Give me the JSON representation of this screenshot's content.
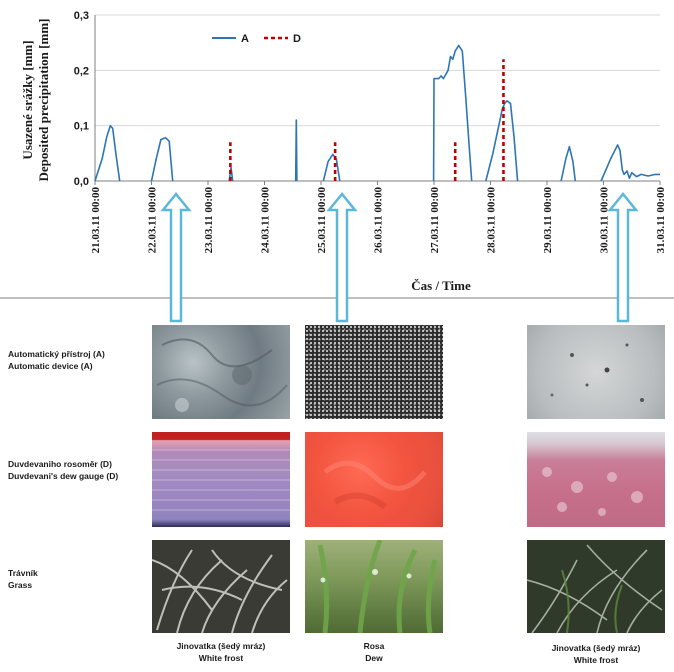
{
  "chart_data": {
    "type": "line",
    "ylabel_cz": "Usazené srážky [mm]",
    "ylabel_en": "Deposited precipitation [mm]",
    "xlabel": "Čas / Time",
    "ylim": [
      0,
      0.3
    ],
    "yticks": [
      "0,0",
      "0,1",
      "0,2",
      "0,3"
    ],
    "yticks_values": [
      0,
      0.1,
      0.2,
      0.3
    ],
    "xlim": [
      "21.03.11 00:00",
      "31.03.11 00:00"
    ],
    "xticks": [
      "21.03.11 00:00",
      "22.03.11 00:00",
      "23.03.11 00:00",
      "24.03.11 00:00",
      "25.03.11 00:00",
      "26.03.11 00:00",
      "27.03.11 00:00",
      "28.03.11 00:00",
      "29.03.11 00:00",
      "30.03.11 00:00",
      "31.03.11 00:00"
    ],
    "grid": "horizontal",
    "legend_position": "top-left",
    "series": [
      {
        "name": "A",
        "color": "#2e75b6",
        "style": "solid",
        "points": [
          [
            "21.03.11 00:00",
            0
          ],
          [
            "21.03.11 03:00",
            0.04
          ],
          [
            "21.03.11 05:00",
            0.08
          ],
          [
            "21.03.11 06:30",
            0.1
          ],
          [
            "21.03.11 07:30",
            0.095
          ],
          [
            "21.03.11 09:00",
            0.045
          ],
          [
            "21.03.11 10:30",
            0
          ],
          [
            "22.03.11 00:00",
            0
          ],
          [
            "22.03.11 02:00",
            0.04
          ],
          [
            "22.03.11 04:00",
            0.075
          ],
          [
            "22.03.11 06:00",
            0.078
          ],
          [
            "22.03.11 07:30",
            0.072
          ],
          [
            "22.03.11 09:00",
            0
          ],
          [
            "23.03.11 09:00",
            0
          ],
          [
            "23.03.11 09:45",
            0.025
          ],
          [
            "23.03.11 10:30",
            0
          ],
          [
            "24.03.11 13:15",
            0
          ],
          [
            "24.03.11 13:30",
            0.11
          ],
          [
            "24.03.11 13:45",
            0
          ],
          [
            "25.03.11 01:00",
            0
          ],
          [
            "25.03.11 03:00",
            0.035
          ],
          [
            "25.03.11 05:00",
            0.048
          ],
          [
            "25.03.11 06:30",
            0.04
          ],
          [
            "25.03.11 08:00",
            0
          ],
          [
            "26.03.11 23:50",
            0
          ],
          [
            "27.03.11 00:00",
            0.185
          ],
          [
            "27.03.11 02:00",
            0.185
          ],
          [
            "27.03.11 03:00",
            0.19
          ],
          [
            "27.03.11 04:00",
            0.185
          ],
          [
            "27.03.11 06:00",
            0.2
          ],
          [
            "27.03.11 07:00",
            0.225
          ],
          [
            "27.03.11 08:00",
            0.22
          ],
          [
            "27.03.11 09:00",
            0.235
          ],
          [
            "27.03.11 10:30",
            0.245
          ],
          [
            "27.03.11 12:00",
            0.235
          ],
          [
            "27.03.11 13:30",
            0.15
          ],
          [
            "27.03.11 15:00",
            0.06
          ],
          [
            "27.03.11 16:00",
            0
          ],
          [
            "27.03.11 22:00",
            0
          ],
          [
            "28.03.11 01:00",
            0.05
          ],
          [
            "28.03.11 03:00",
            0.09
          ],
          [
            "28.03.11 05:00",
            0.13
          ],
          [
            "28.03.11 06:00",
            0.14
          ],
          [
            "28.03.11 07:00",
            0.145
          ],
          [
            "28.03.11 08:30",
            0.14
          ],
          [
            "28.03.11 10:00",
            0.08
          ],
          [
            "28.03.11 11:30",
            0
          ],
          [
            "29.03.11 06:00",
            0
          ],
          [
            "29.03.11 08:00",
            0.04
          ],
          [
            "29.03.11 09:30",
            0.062
          ],
          [
            "29.03.11 11:00",
            0.035
          ],
          [
            "29.03.11 12:00",
            0
          ],
          [
            "29.03.11 23:00",
            0
          ],
          [
            "30.03.11 03:00",
            0.04
          ],
          [
            "30.03.11 06:00",
            0.065
          ],
          [
            "30.03.11 07:00",
            0.055
          ],
          [
            "30.03.11 08:00",
            0.02
          ],
          [
            "30.03.11 08:45",
            0.012
          ],
          [
            "30.03.11 10:00",
            0.018
          ],
          [
            "30.03.11 11:00",
            0.005
          ],
          [
            "30.03.11 12:00",
            0.015
          ],
          [
            "30.03.11 14:00",
            0.008
          ],
          [
            "30.03.11 16:00",
            0.012
          ],
          [
            "30.03.11 19:00",
            0.009
          ],
          [
            "30.03.11 22:00",
            0.012
          ],
          [
            "31.03.11 00:00",
            0.012
          ]
        ]
      },
      {
        "name": "D",
        "color": "#c00000",
        "style": "dashed",
        "points": [
          [
            "23.03.11 09:30",
            0
          ],
          [
            "23.03.11 09:30",
            0.07
          ],
          [
            "25.03.11 06:00",
            0
          ],
          [
            "25.03.11 06:00",
            0.07
          ],
          [
            "27.03.11 09:00",
            0
          ],
          [
            "27.03.11 09:00",
            0.07
          ],
          [
            "28.03.11 05:30",
            0
          ],
          [
            "28.03.11 05:30",
            0.22
          ]
        ]
      }
    ]
  },
  "rows": [
    {
      "label_cz": "Automatický přístroj (A)",
      "label_en": "Automatic device (A)"
    },
    {
      "label_cz": "Duvdevaniho rosoměr (D)",
      "label_en": "Duvdevani's dew gauge (D)"
    },
    {
      "label_cz": "Trávník",
      "label_en": "Grass"
    }
  ],
  "columns": [
    {
      "caption_cz": "Jinovatka (šedý mráz)",
      "caption_en": "White frost"
    },
    {
      "caption_cz": "Rosa",
      "caption_en": "Dew"
    },
    {
      "caption_cz": "Jinovatka (šedý mráz)",
      "caption_en": "White frost"
    }
  ],
  "colors": {
    "series_a": "#2e75b6",
    "series_d": "#c00000",
    "arrow": "#5bb8d8"
  }
}
